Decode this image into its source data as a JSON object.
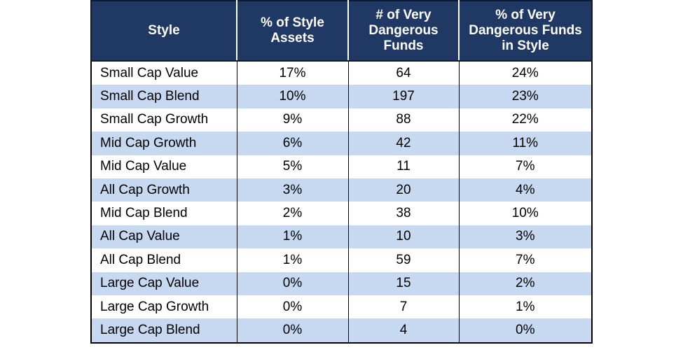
{
  "table": {
    "headers": [
      "Style",
      "% of Style Assets",
      "# of Very Dangerous Funds",
      "% of Very Dangerous Funds in Style"
    ],
    "rows": [
      [
        "Small Cap Value",
        "17%",
        "64",
        "24%"
      ],
      [
        "Small Cap Blend",
        "10%",
        "197",
        "23%"
      ],
      [
        "Small Cap Growth",
        "9%",
        "88",
        "22%"
      ],
      [
        "Mid Cap Growth",
        "6%",
        "42",
        "11%"
      ],
      [
        "Mid Cap Value",
        "5%",
        "11",
        "7%"
      ],
      [
        "All Cap Growth",
        "3%",
        "20",
        "4%"
      ],
      [
        "Mid Cap Blend",
        "2%",
        "38",
        "10%"
      ],
      [
        "All Cap Value",
        "1%",
        "10",
        "3%"
      ],
      [
        "All Cap Blend",
        "1%",
        "59",
        "7%"
      ],
      [
        "Large Cap Value",
        "0%",
        "15",
        "2%"
      ],
      [
        "Large Cap Growth",
        "0%",
        "7",
        "1%"
      ],
      [
        "Large Cap Blend",
        "0%",
        "4",
        "0%"
      ]
    ]
  },
  "colors": {
    "header_bg": "#1f3864",
    "header_text": "#ffffff",
    "stripe": "#c6d9f1",
    "row_bg": "#ffffff"
  }
}
